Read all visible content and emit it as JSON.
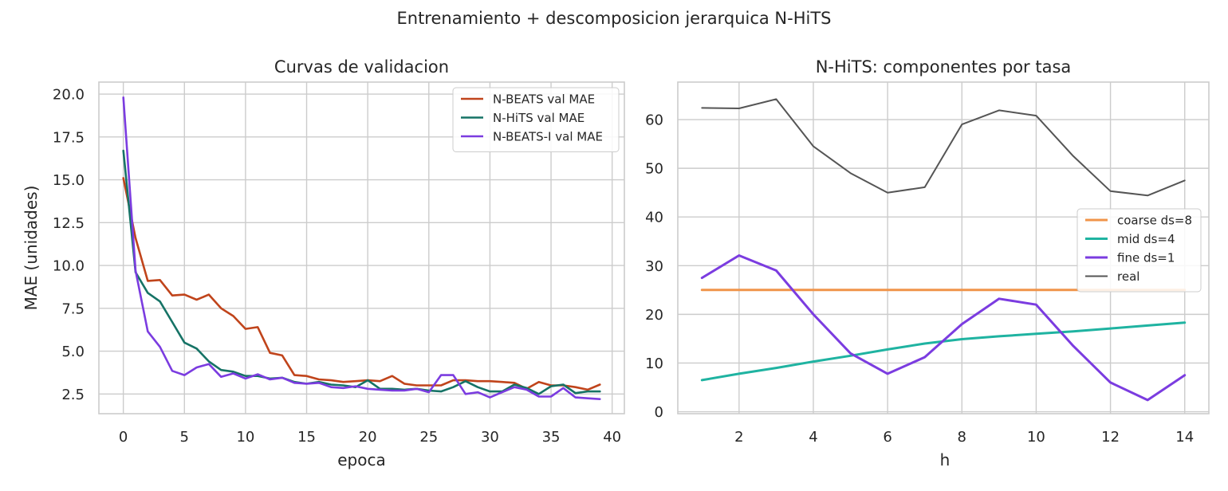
{
  "suptitle": "Entrenamiento + descomposicion jerarquica N-HiTS",
  "chart_data": [
    {
      "type": "line",
      "title": "Curvas de validacion",
      "xlabel": "epoca",
      "ylabel": "MAE (unidades)",
      "xlim": [
        -2,
        41
      ],
      "ylim": [
        1.35,
        20.7
      ],
      "xticks": [
        0,
        5,
        10,
        15,
        20,
        25,
        30,
        35,
        40
      ],
      "yticks": [
        2.5,
        5.0,
        7.5,
        10.0,
        12.5,
        15.0,
        17.5,
        20.0
      ],
      "xtick_labels": [
        "0",
        "5",
        "10",
        "15",
        "20",
        "25",
        "30",
        "35",
        "40"
      ],
      "ytick_labels": [
        "2.5",
        "5.0",
        "7.5",
        "10.0",
        "12.5",
        "15.0",
        "17.5",
        "20.0"
      ],
      "grid": true,
      "legend": "top-right",
      "x": [
        0,
        1,
        2,
        3,
        4,
        5,
        6,
        7,
        8,
        9,
        10,
        11,
        12,
        13,
        14,
        15,
        16,
        17,
        18,
        19,
        20,
        21,
        22,
        23,
        24,
        25,
        26,
        27,
        28,
        29,
        30,
        31,
        32,
        33,
        34,
        35,
        36,
        37,
        38,
        39
      ],
      "series": [
        {
          "name": "N-BEATS val MAE",
          "color": "#c0441b",
          "values": [
            15.1,
            11.6,
            9.1,
            9.15,
            8.25,
            8.3,
            8.0,
            8.3,
            7.5,
            7.05,
            6.3,
            6.4,
            4.9,
            4.75,
            3.6,
            3.55,
            3.35,
            3.3,
            3.2,
            3.25,
            3.3,
            3.25,
            3.55,
            3.1,
            3.0,
            3.0,
            3.0,
            3.3,
            3.3,
            3.25,
            3.25,
            3.2,
            3.15,
            2.8,
            3.2,
            3.0,
            3.0,
            2.9,
            2.75,
            3.05
          ]
        },
        {
          "name": "N-HiTS val MAE",
          "color": "#167366",
          "values": [
            16.7,
            9.6,
            8.4,
            7.9,
            6.7,
            5.5,
            5.15,
            4.4,
            3.9,
            3.8,
            3.55,
            3.55,
            3.4,
            3.45,
            3.2,
            3.1,
            3.2,
            3.05,
            3.0,
            2.9,
            3.3,
            2.8,
            2.8,
            2.75,
            2.8,
            2.7,
            2.65,
            2.9,
            3.25,
            2.9,
            2.65,
            2.65,
            3.05,
            2.85,
            2.5,
            2.95,
            3.05,
            2.55,
            2.65,
            2.65
          ]
        },
        {
          "name": "N-BEATS-I val MAE",
          "color": "#7b3ce0",
          "values": [
            19.8,
            9.7,
            6.15,
            5.25,
            3.85,
            3.6,
            4.05,
            4.25,
            3.5,
            3.7,
            3.4,
            3.65,
            3.35,
            3.45,
            3.15,
            3.1,
            3.15,
            2.9,
            2.85,
            2.95,
            2.8,
            2.75,
            2.7,
            2.7,
            2.8,
            2.6,
            3.6,
            3.6,
            2.5,
            2.6,
            2.3,
            2.6,
            2.9,
            2.75,
            2.35,
            2.35,
            2.85,
            2.3,
            2.25,
            2.2
          ]
        }
      ]
    },
    {
      "type": "line",
      "title": "N-HiTS: componentes por tasa",
      "xlabel": "h",
      "ylabel": "",
      "xlim": [
        0.35,
        14.65
      ],
      "ylim": [
        -0.4,
        67.7
      ],
      "xticks": [
        2,
        4,
        6,
        8,
        10,
        12,
        14
      ],
      "yticks": [
        0,
        10,
        20,
        30,
        40,
        50,
        60
      ],
      "xtick_labels": [
        "2",
        "4",
        "6",
        "8",
        "10",
        "12",
        "14"
      ],
      "ytick_labels": [
        "0",
        "10",
        "20",
        "30",
        "40",
        "50",
        "60"
      ],
      "grid": true,
      "legend": "center-right",
      "x": [
        1,
        2,
        3,
        4,
        5,
        6,
        7,
        8,
        9,
        10,
        11,
        12,
        13,
        14
      ],
      "series": [
        {
          "name": "coarse ds=8",
          "color": "#f0944a",
          "width": 3,
          "values": [
            25,
            25,
            25,
            25,
            25,
            25,
            25,
            25,
            25,
            25,
            25,
            25,
            25,
            25
          ]
        },
        {
          "name": "mid ds=4",
          "color": "#1fb3a1",
          "width": 3,
          "values": [
            6.5,
            7.8,
            9.0,
            10.3,
            11.5,
            12.8,
            14.0,
            14.9,
            15.5,
            16.0,
            16.5,
            17.1,
            17.7,
            18.3
          ]
        },
        {
          "name": "fine ds=1",
          "color": "#7b3ce0",
          "width": 3,
          "values": [
            27.5,
            32.1,
            29.0,
            20.0,
            12.0,
            7.8,
            11.2,
            18.0,
            23.2,
            22.0,
            13.5,
            6.0,
            2.4,
            7.5
          ]
        },
        {
          "name": "real",
          "color": "#555555",
          "width": 2,
          "values": [
            62.4,
            62.3,
            64.2,
            54.5,
            49.0,
            45.0,
            46.1,
            59.0,
            61.9,
            60.8,
            52.5,
            45.3,
            44.4,
            47.5
          ]
        }
      ]
    }
  ]
}
